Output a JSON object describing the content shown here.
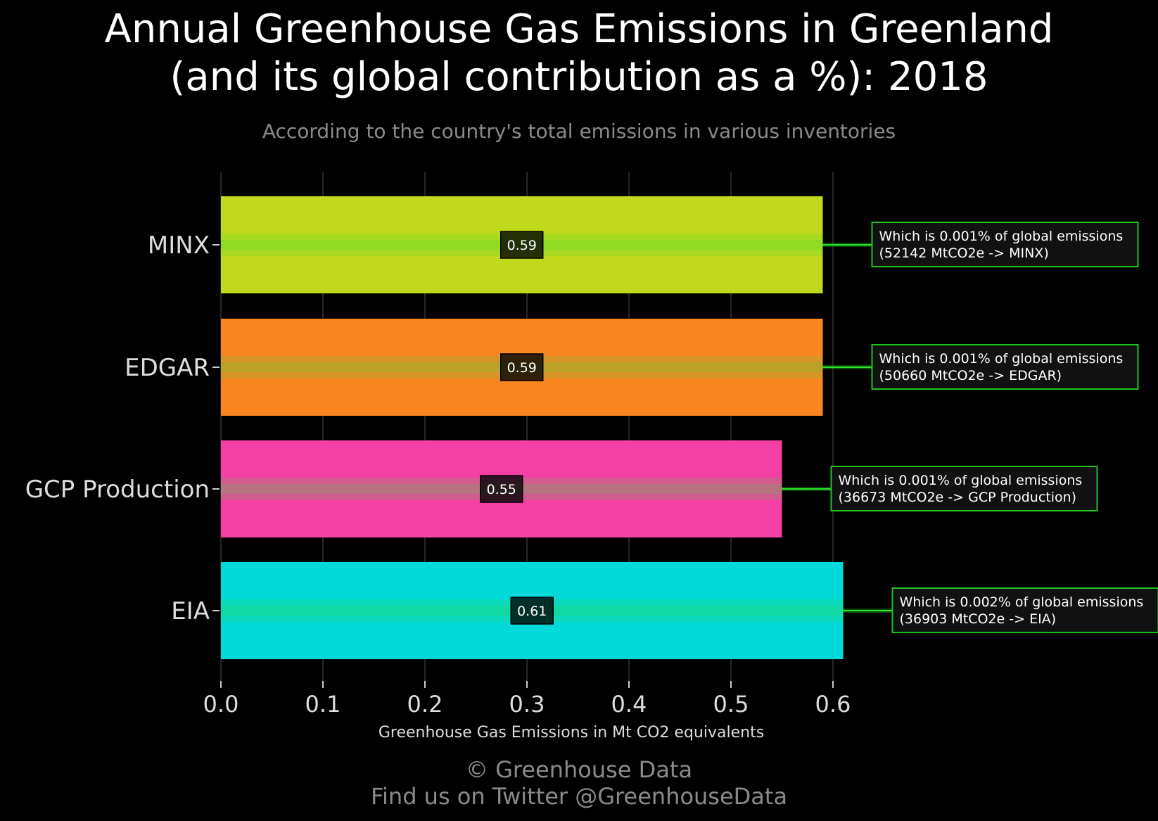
{
  "header": {
    "title_line1": "Annual Greenhouse Gas Emissions in Greenland",
    "title_line2": "(and its global contribution as a %): 2018",
    "subtitle": "According to the country's total emissions in various inventories"
  },
  "chart_data": {
    "type": "bar",
    "orientation": "horizontal",
    "categories": [
      "MINX",
      "EDGAR",
      "GCP Production",
      "EIA"
    ],
    "values": [
      0.59,
      0.59,
      0.55,
      0.61
    ],
    "value_labels": [
      "0.59",
      "0.59",
      "0.55",
      "0.61"
    ],
    "bar_colors": [
      "#c0d91c",
      "#fa8622",
      "#f440a4",
      "#02d9d9"
    ],
    "annotations": [
      {
        "line1": "Which is 0.001% of global emissions",
        "line2": "(52142 MtCO2e -> MINX)"
      },
      {
        "line1": "Which is 0.001% of global emissions",
        "line2": "(50660 MtCO2e -> EDGAR)"
      },
      {
        "line1": "Which is 0.001% of global emissions",
        "line2": "(36673 MtCO2e -> GCP Production)"
      },
      {
        "line1": "Which is 0.002% of global emissions",
        "line2": "(36903 MtCO2e -> EIA)"
      }
    ],
    "xlabel": "Greenhouse Gas Emissions in Mt CO2 equivalents",
    "ylabel": "",
    "xlim": [
      0,
      0.6
    ],
    "xticks": [
      "0.0",
      "0.1",
      "0.2",
      "0.3",
      "0.4",
      "0.5",
      "0.6"
    ],
    "grid": true,
    "annotation_border_color": "#1ec31e",
    "background": "#000000"
  },
  "footer": {
    "copyright": "© Greenhouse Data",
    "twitter": "Find us on Twitter @GreenhouseData"
  }
}
